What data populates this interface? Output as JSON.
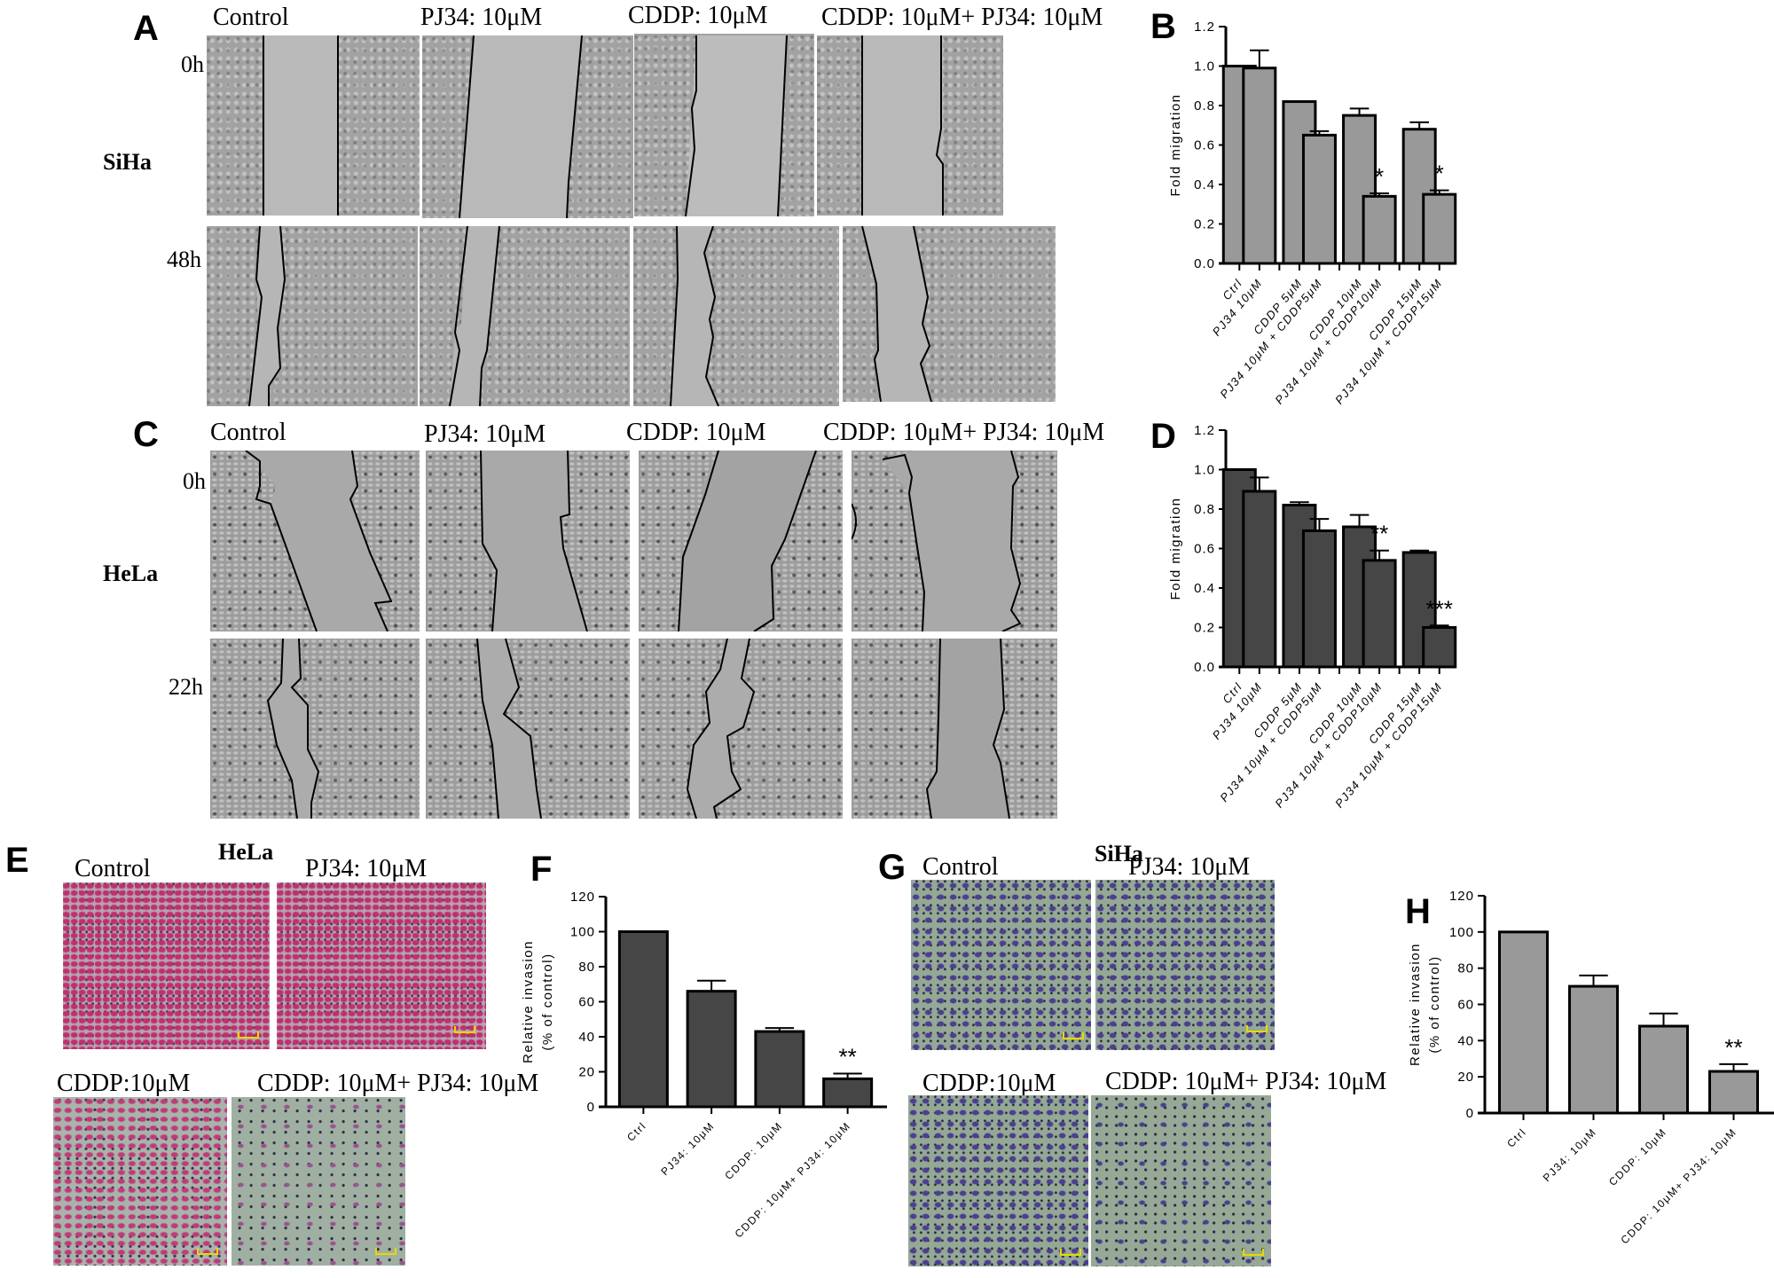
{
  "figure": {
    "panels": {
      "A": {
        "letter": "A",
        "cell_line": "SiHa",
        "conditions": [
          "Control",
          "PJ34: 10μM",
          "CDDP: 10μM",
          "CDDP: 10μM+ PJ34: 10μM"
        ],
        "timepoints": [
          "0h",
          "48h"
        ]
      },
      "B": {
        "letter": "B"
      },
      "C": {
        "letter": "C",
        "cell_line": "HeLa",
        "conditions": [
          "Control",
          "PJ34: 10μM",
          "CDDP: 10μM",
          "CDDP: 10μM+ PJ34: 10μM"
        ],
        "timepoints": [
          "0h",
          "22h"
        ]
      },
      "D": {
        "letter": "D"
      },
      "E": {
        "letter": "E",
        "cell_line": "HeLa",
        "conditions": [
          "Control",
          "PJ34: 10μM",
          "CDDP:10μM",
          "CDDP: 10μM+ PJ34: 10μM"
        ]
      },
      "F": {
        "letter": "F"
      },
      "G": {
        "letter": "G",
        "cell_line": "SiHa",
        "conditions": [
          "Control",
          "PJ34: 10μM",
          "CDDP:10μM",
          "CDDP: 10μM+ PJ34: 10μM"
        ]
      },
      "H": {
        "letter": "H"
      }
    },
    "colors": {
      "light_bar": "#999999",
      "dark_bar": "#464646",
      "axis": "#000000",
      "pink_stain": "#c0306a",
      "purple_stain": "#4b3f8e"
    }
  },
  "chart_data": [
    {
      "panel": "B",
      "type": "bar",
      "title": "",
      "cell_line": "SiHa",
      "xlabel": "",
      "ylabel": "Fold migration",
      "ylim": [
        0,
        1.2
      ],
      "yticks": [
        "0.0",
        "0.2",
        "0.4",
        "0.6",
        "0.8",
        "1.0",
        "1.2"
      ],
      "categories": [
        "Ctrl",
        "PJ34 10μM",
        "",
        "CDDP 5μM",
        "PJ34 10μM + CDDP5μM",
        "",
        "CDDP 10μM",
        "PJ34 10μM + CDDP10μM",
        "",
        "CDDP 15μM",
        "PJ34 10μM + CDDP15μM"
      ],
      "values": [
        1.0,
        0.99,
        null,
        0.82,
        0.65,
        null,
        0.75,
        0.34,
        null,
        0.68,
        0.35
      ],
      "errors": [
        0,
        0.09,
        null,
        0,
        0.02,
        null,
        0.035,
        0.015,
        null,
        0.035,
        0.02
      ],
      "annotations": [
        "",
        "",
        "",
        "",
        "",
        "",
        "",
        "*",
        "",
        "",
        "*"
      ],
      "bar_color": "#999999",
      "grid": false,
      "legend": "none"
    },
    {
      "panel": "D",
      "type": "bar",
      "title": "",
      "cell_line": "HeLa",
      "xlabel": "",
      "ylabel": "Fold migration",
      "ylim": [
        0,
        1.2
      ],
      "yticks": [
        "0.0",
        "0.2",
        "0.4",
        "0.6",
        "0.8",
        "1.0",
        "1.2"
      ],
      "categories": [
        "Ctrl",
        "PJ34 10μM",
        "",
        "CDDP 5μM",
        "PJ34 10μM + CDDP5μM",
        "",
        "CDDP 10μM",
        "PJ34 10μM + CDDP10μM",
        "",
        "CDDP 15μM",
        "PJ34 10μM + CDDP15μM"
      ],
      "values": [
        1.0,
        0.89,
        null,
        0.82,
        0.69,
        null,
        0.71,
        0.54,
        null,
        0.58,
        0.2
      ],
      "errors": [
        0,
        0.07,
        null,
        0.015,
        0.06,
        null,
        0.06,
        0.05,
        null,
        0.01,
        0.01
      ],
      "annotations": [
        "",
        "",
        "",
        "",
        "",
        "",
        "",
        "**",
        "",
        "",
        "***"
      ],
      "bar_color": "#464646",
      "grid": false,
      "legend": "none"
    },
    {
      "panel": "F",
      "type": "bar",
      "title": "",
      "cell_line": "HeLa",
      "xlabel": "",
      "ylabel": "Relative invasion",
      "ylabel2": "(% of control)",
      "ylim": [
        0,
        120
      ],
      "yticks": [
        "0",
        "20",
        "40",
        "60",
        "80",
        "100",
        "120"
      ],
      "categories": [
        "Ctrl",
        "PJ34: 10μM",
        "CDDP: 10μM",
        "CDDP: 10μM+ PJ34: 10μM"
      ],
      "values": [
        100,
        66,
        43,
        16
      ],
      "errors": [
        0,
        6,
        2,
        3
      ],
      "annotations": [
        "",
        "",
        "",
        "**"
      ],
      "bar_color": "#464646",
      "grid": false,
      "legend": "none"
    },
    {
      "panel": "H",
      "type": "bar",
      "title": "",
      "cell_line": "SiHa",
      "xlabel": "",
      "ylabel": "Relative invasion",
      "ylabel2": "(% of control)",
      "ylim": [
        0,
        120
      ],
      "yticks": [
        "0",
        "20",
        "40",
        "60",
        "80",
        "100",
        "120"
      ],
      "categories": [
        "Ctrl",
        "PJ34: 10μM",
        "CDDP: 10μM",
        "CDDP: 10μM+ PJ34: 10μM"
      ],
      "values": [
        100,
        70,
        48,
        23
      ],
      "errors": [
        0,
        6,
        7,
        4
      ],
      "annotations": [
        "",
        "",
        "",
        "**"
      ],
      "bar_color": "#999999",
      "grid": false,
      "legend": "none"
    }
  ]
}
